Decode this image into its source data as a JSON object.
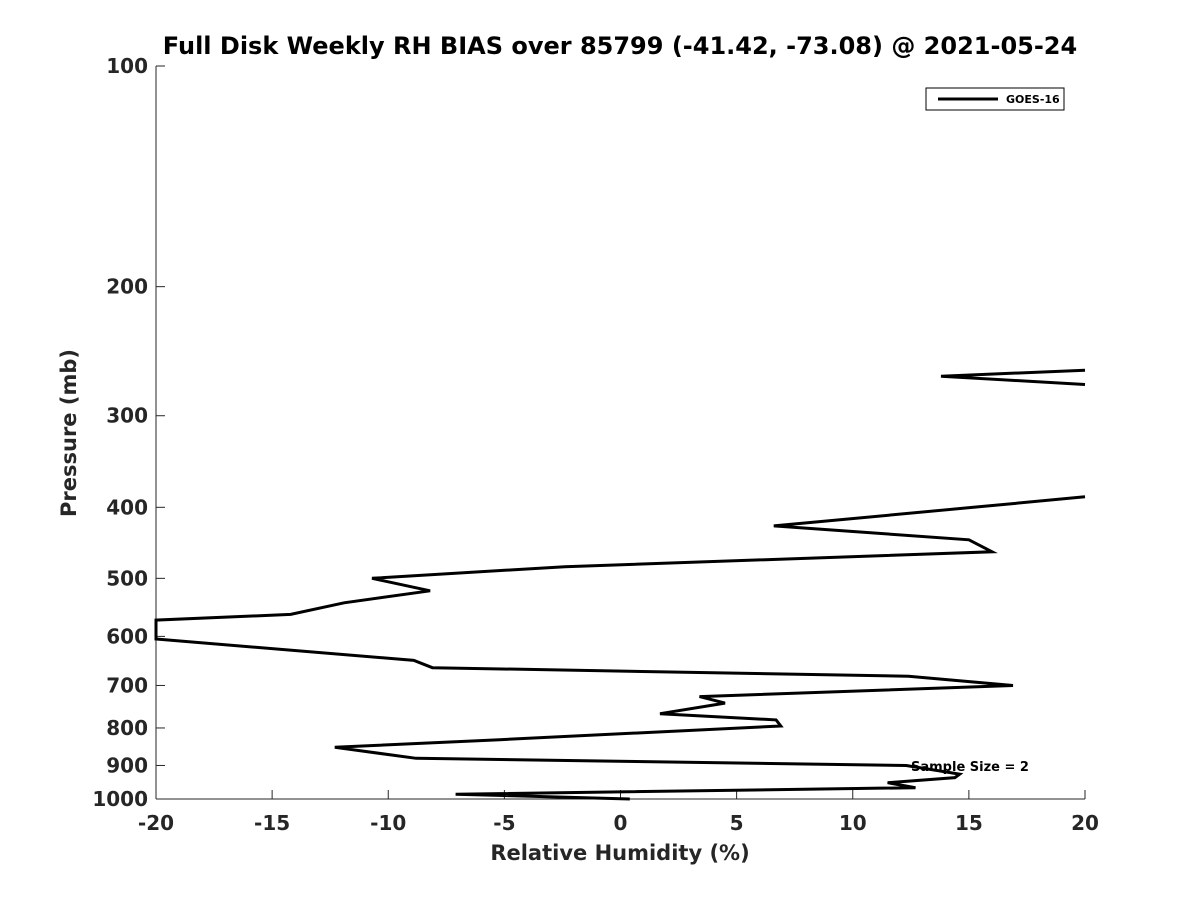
{
  "chart_data": {
    "type": "line",
    "title": "Full Disk Weekly RH BIAS over 85799 (-41.42, -73.08) @ 2021-05-24",
    "xlabel": "Relative Humidity (%)",
    "ylabel": "Pressure (mb)",
    "xlim": [
      -20,
      20
    ],
    "ylim": [
      1000,
      100
    ],
    "y_scale": "log-pressure (inverted)",
    "x_ticks": [
      -20,
      -15,
      -10,
      -5,
      0,
      5,
      10,
      15,
      20
    ],
    "x_tick_labels": [
      "-20",
      "-15",
      "-10",
      "-5",
      "0",
      "5",
      "10",
      "15",
      "20"
    ],
    "y_ticks": [
      100,
      200,
      300,
      400,
      500,
      600,
      700,
      800,
      900,
      1000
    ],
    "y_tick_labels": [
      "100",
      "200",
      "300",
      "400",
      "500",
      "600",
      "700",
      "800",
      "900",
      "1000"
    ],
    "grid": false,
    "legend_position": "top-right",
    "legend_entries": [
      "GOES-16"
    ],
    "annotation": "Sample Size = 2",
    "series": [
      {
        "name": "GOES-16",
        "color": "#000000",
        "points": [
          {
            "x": 0.4,
            "y": 1000
          },
          {
            "x": -7.1,
            "y": 985
          },
          {
            "x": 12.7,
            "y": 965
          },
          {
            "x": 11.5,
            "y": 950
          },
          {
            "x": 14.4,
            "y": 935
          },
          {
            "x": 14.6,
            "y": 925
          },
          {
            "x": 12.3,
            "y": 900
          },
          {
            "x": -8.8,
            "y": 880
          },
          {
            "x": -12.3,
            "y": 850
          },
          {
            "x": -5.2,
            "y": 830
          },
          {
            "x": 6.9,
            "y": 795
          },
          {
            "x": 6.7,
            "y": 780
          },
          {
            "x": 1.7,
            "y": 765
          },
          {
            "x": 4.5,
            "y": 740
          },
          {
            "x": 3.4,
            "y": 725
          },
          {
            "x": 16.9,
            "y": 700
          },
          {
            "x": 12.4,
            "y": 680
          },
          {
            "x": -8.1,
            "y": 662
          },
          {
            "x": -8.9,
            "y": 647
          },
          {
            "x": -20,
            "y": 605
          },
          {
            "x": -20,
            "y": 570
          },
          {
            "x": -14.2,
            "y": 560
          },
          {
            "x": -11.9,
            "y": 540
          },
          {
            "x": -8.2,
            "y": 520
          },
          {
            "x": -10.7,
            "y": 500
          },
          {
            "x": -2.4,
            "y": 482
          },
          {
            "x": 16.0,
            "y": 460
          },
          {
            "x": 15.0,
            "y": 443
          },
          {
            "x": 6.6,
            "y": 424
          },
          {
            "x": 15.2,
            "y": 400
          },
          {
            "x": 20,
            "y": 387
          },
          {
            "x": null,
            "y": null
          },
          {
            "x": 20,
            "y": 272
          },
          {
            "x": 13.8,
            "y": 265
          },
          {
            "x": 20,
            "y": 260
          }
        ]
      }
    ]
  }
}
